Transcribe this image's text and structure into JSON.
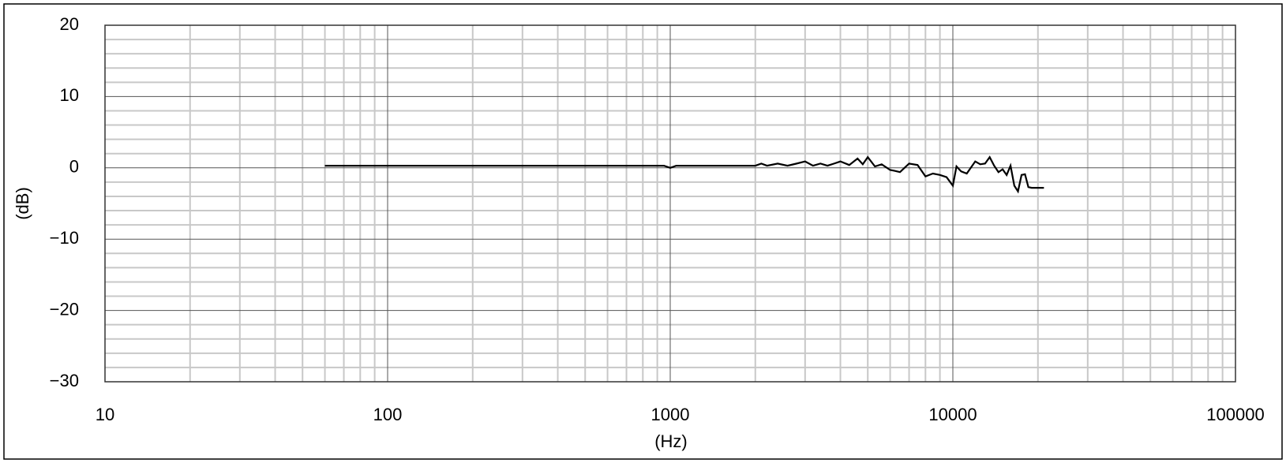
{
  "chart_data": {
    "type": "line",
    "x_label": "(Hz)",
    "y_label": "(dB)",
    "log_x": true,
    "xlim": [
      10,
      100000
    ],
    "xticks": [
      10,
      100,
      1000,
      10000,
      100000
    ],
    "xminor": [
      20,
      30,
      40,
      50,
      60,
      70,
      80,
      90,
      200,
      300,
      400,
      500,
      600,
      700,
      800,
      900,
      2000,
      3000,
      4000,
      5000,
      6000,
      7000,
      8000,
      9000,
      20000,
      30000,
      40000,
      50000,
      60000,
      70000,
      80000,
      90000
    ],
    "ylim": [
      -30,
      20
    ],
    "yticks": [
      {
        "value": -30,
        "label": "−30"
      },
      {
        "value": -20,
        "label": "−20"
      },
      {
        "value": -10,
        "label": "−10"
      },
      0,
      10,
      20
    ],
    "yminor": [
      -28,
      -26,
      -24,
      -22,
      -18,
      -16,
      -14,
      -12,
      -8,
      -6,
      -4,
      -2,
      2,
      4,
      6,
      8,
      12,
      14,
      16,
      18
    ],
    "grid": true,
    "series": [
      {
        "color": "#000000",
        "x": [
          60,
          100,
          200,
          500,
          900,
          950,
          1000,
          1050,
          1500,
          2000,
          2100,
          2200,
          2400,
          2600,
          2800,
          3000,
          3200,
          3400,
          3600,
          3800,
          4000,
          4300,
          4600,
          4800,
          5000,
          5300,
          5600,
          6000,
          6200,
          6500,
          7000,
          7500,
          8000,
          8500,
          9000,
          9500,
          10000,
          10300,
          10700,
          11200,
          12000,
          12500,
          13000,
          13500,
          14000,
          14500,
          15000,
          15500,
          16000,
          16500,
          17000,
          17500,
          18000,
          18500,
          19000,
          19500,
          20000,
          21000
        ],
        "values": [
          0.3,
          0.3,
          0.3,
          0.3,
          0.3,
          0.3,
          0,
          0.3,
          0.3,
          0.3,
          0.6,
          0.3,
          0.6,
          0.3,
          0.6,
          0.9,
          0.3,
          0.6,
          0.3,
          0.6,
          0.9,
          0.4,
          1.3,
          0.5,
          1.5,
          0.2,
          0.5,
          -0.3,
          -0.4,
          -0.6,
          0.6,
          0.4,
          -1.2,
          -0.8,
          -1,
          -1.3,
          -2.5,
          0.2,
          -0.5,
          -0.8,
          0.9,
          0.5,
          0.6,
          1.5,
          0.3,
          -0.6,
          -0.2,
          -1,
          0.3,
          -2.5,
          -3.3,
          -1,
          -0.9,
          -2.7,
          -2.8,
          -2.8,
          -2.8,
          -2.8
        ]
      }
    ]
  }
}
